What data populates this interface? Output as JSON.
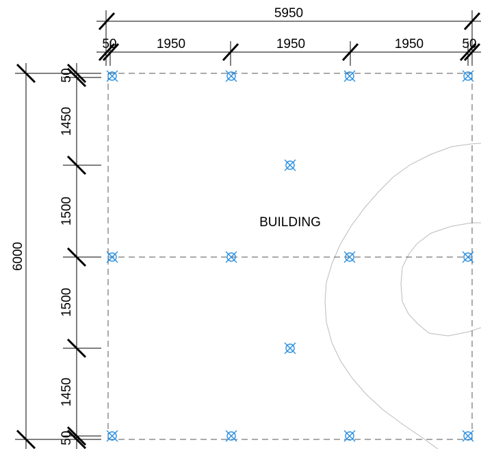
{
  "drawing": {
    "label": "BUILDING",
    "total_width": "5950",
    "total_height": "6000",
    "horizontal_segments": [
      "50",
      "1950",
      "1950",
      "1950",
      "50"
    ],
    "vertical_segments": [
      "50",
      "1450",
      "1500",
      "1500",
      "1450",
      "50"
    ]
  },
  "colors": {
    "marker": "#2a8fe0",
    "dimension_line": "#000000",
    "grid_line": "#555555",
    "contour": "#bbbbbb"
  },
  "markers": {
    "count": 14,
    "icon": "pile-marker-icon"
  }
}
